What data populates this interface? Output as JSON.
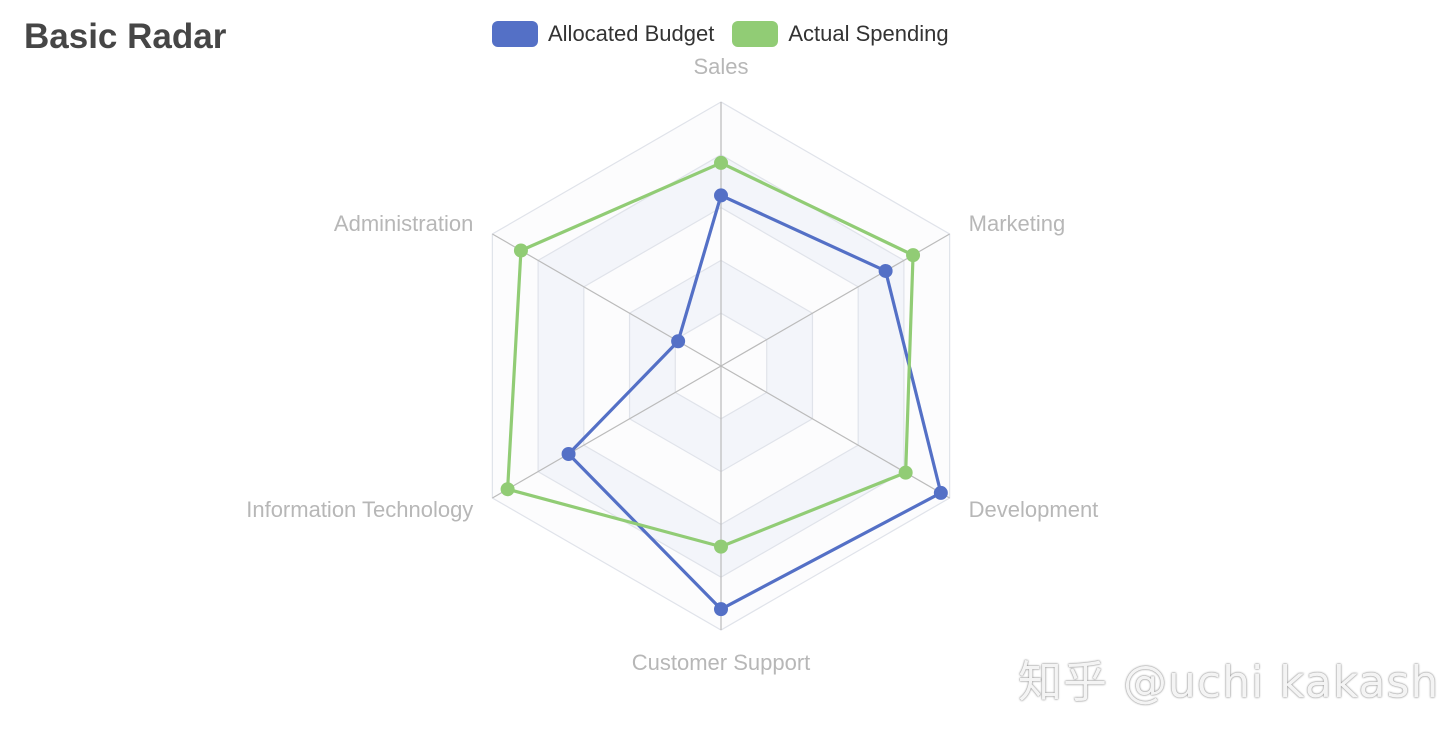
{
  "title": "Basic Radar",
  "watermark": "知乎 @uchi kakashi",
  "colors": {
    "allocated": "#5470c6",
    "actual": "#91cc75",
    "axis_label": "#b7b7b7",
    "split_area_odd": "#f3f5fa",
    "split_area_even": "#fcfcfd",
    "split_line": "#e0e3ea",
    "axis_line": "#bbbbbb"
  },
  "legend": [
    {
      "name": "Allocated Budget",
      "color": "#5470c6"
    },
    {
      "name": "Actual Spending",
      "color": "#91cc75"
    }
  ],
  "chart_data": {
    "type": "radar",
    "title": "Basic Radar",
    "indicators": [
      {
        "name": "Sales",
        "max": 6500
      },
      {
        "name": "Administration",
        "max": 16000
      },
      {
        "name": "Information Technology",
        "max": 30000
      },
      {
        "name": "Customer Support",
        "max": 38000
      },
      {
        "name": "Development",
        "max": 52000
      },
      {
        "name": "Marketing",
        "max": 25000
      }
    ],
    "series": [
      {
        "name": "Allocated Budget",
        "values": [
          4200,
          3000,
          20000,
          35000,
          50000,
          18000
        ]
      },
      {
        "name": "Actual Spending",
        "values": [
          5000,
          14000,
          28000,
          26000,
          42000,
          21000
        ]
      }
    ],
    "split_number": 5,
    "legend_position": "top-center"
  }
}
